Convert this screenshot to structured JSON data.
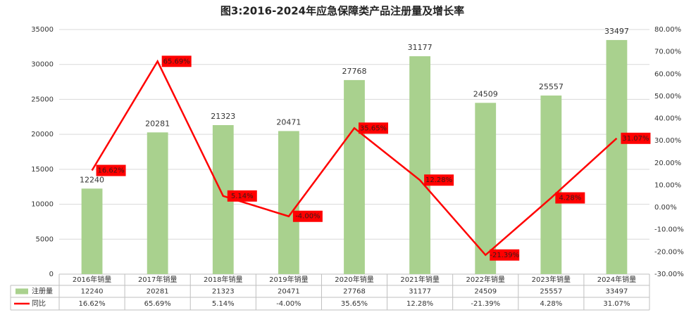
{
  "chart_data": {
    "type": "bar_line",
    "title": "图3:2016-2024年应急保障类产品注册量及增长率",
    "categories": [
      "2016年销量",
      "2017年销量",
      "2018年销量",
      "2019年销量",
      "2020年销量",
      "2021年销量",
      "2022年销量",
      "2023年销量",
      "2024年销量"
    ],
    "series": [
      {
        "name": "注册量",
        "type": "bar",
        "color": "#a9d18e",
        "values": [
          12240,
          20281,
          21323,
          20471,
          27768,
          31177,
          24509,
          25557,
          33497
        ]
      },
      {
        "name": "同比",
        "type": "line",
        "axis": "y2",
        "color": "#ff0000",
        "values": [
          16.62,
          65.69,
          5.14,
          -4.0,
          35.65,
          12.28,
          -21.39,
          4.28,
          31.07
        ],
        "value_labels": [
          "16.62%",
          "65.69%",
          "5.14%",
          "-4.00%",
          "35.65%",
          "12.28%",
          "-21.39%",
          "4.28%",
          "31.07%"
        ]
      }
    ],
    "ylim": [
      0,
      35000
    ],
    "yticks": [
      0,
      5000,
      10000,
      15000,
      20000,
      25000,
      30000,
      35000
    ],
    "y2lim": [
      -30,
      80
    ],
    "y2ticks": [
      {
        "value": -30,
        "label": "-30.00%"
      },
      {
        "value": -20,
        "label": "-20.00%"
      },
      {
        "value": -10,
        "label": "-10.00%"
      },
      {
        "value": 0,
        "label": "0.00%"
      },
      {
        "value": 10,
        "label": "10.00%"
      },
      {
        "value": 20,
        "label": "20.00%"
      },
      {
        "value": 30,
        "label": "30.00%"
      },
      {
        "value": 40,
        "label": "40.00%"
      },
      {
        "value": 50,
        "label": "50.00%"
      },
      {
        "value": 60,
        "label": "60.00%"
      },
      {
        "value": 70,
        "label": "70.00%"
      },
      {
        "value": 80,
        "label": "80.00%"
      }
    ],
    "grid": true
  }
}
